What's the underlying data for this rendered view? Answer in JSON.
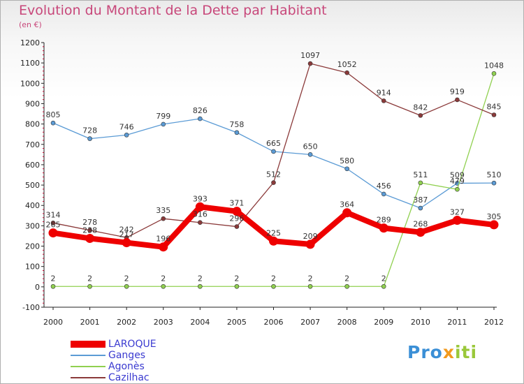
{
  "header": {
    "title": "Evolution du Montant de la Dette par Habitant",
    "unit": "(en €)"
  },
  "logo": {
    "text": "Proxiti",
    "parts": [
      "Pro",
      "x",
      "iti"
    ]
  },
  "chart_data": {
    "type": "line",
    "title": "Evolution du Montant de la Dette par Habitant",
    "subtitle": "(en €)",
    "xlabel": "",
    "ylabel": "",
    "x": [
      "2000",
      "2001",
      "2002",
      "2003",
      "2004",
      "2005",
      "2006",
      "2007",
      "2008",
      "2009",
      "2010",
      "2011",
      "2012"
    ],
    "ylim": [
      -100,
      1200
    ],
    "yticks": [
      "-100",
      "0",
      "100",
      "200",
      "300",
      "400",
      "500",
      "600",
      "700",
      "800",
      "900",
      "1000",
      "1100",
      "1200"
    ],
    "grid": false,
    "legend": "bottom-left",
    "series": [
      {
        "name": "LAROQUE",
        "color": "#ee0000",
        "values": [
          265,
          238,
          217,
          196,
          393,
          371,
          225,
          209,
          364,
          289,
          268,
          327,
          305
        ],
        "labels": [
          "265",
          "238",
          "217",
          "196",
          "393",
          "371",
          "225",
          "209",
          "364",
          "289",
          "268",
          "327",
          "305"
        ]
      },
      {
        "name": "Ganges",
        "color": "#5b9bd5",
        "values": [
          805,
          728,
          746,
          799,
          826,
          758,
          665,
          650,
          580,
          456,
          387,
          509,
          510
        ],
        "labels": [
          "805",
          "728",
          "746",
          "799",
          "826",
          "758",
          "665",
          "650",
          "580",
          "456",
          "387",
          "509",
          "510"
        ]
      },
      {
        "name": "Agonès",
        "color": "#90d050",
        "values": [
          2,
          2,
          2,
          2,
          2,
          2,
          2,
          2,
          2,
          2,
          511,
          479,
          1048
        ],
        "labels": [
          "2",
          "2",
          "2",
          "2",
          "2",
          "2",
          "2",
          "2",
          "2",
          "2",
          "511",
          "479",
          "1048"
        ]
      },
      {
        "name": "Cazilhac",
        "color": "#8b3a3a",
        "values": [
          314,
          278,
          242,
          335,
          316,
          296,
          512,
          1097,
          1052,
          914,
          842,
          919,
          845
        ],
        "labels": [
          "314",
          "278",
          "242",
          "335",
          "316",
          "296",
          "512",
          "1097",
          "1052",
          "914",
          "842",
          "919",
          "845"
        ]
      }
    ]
  }
}
